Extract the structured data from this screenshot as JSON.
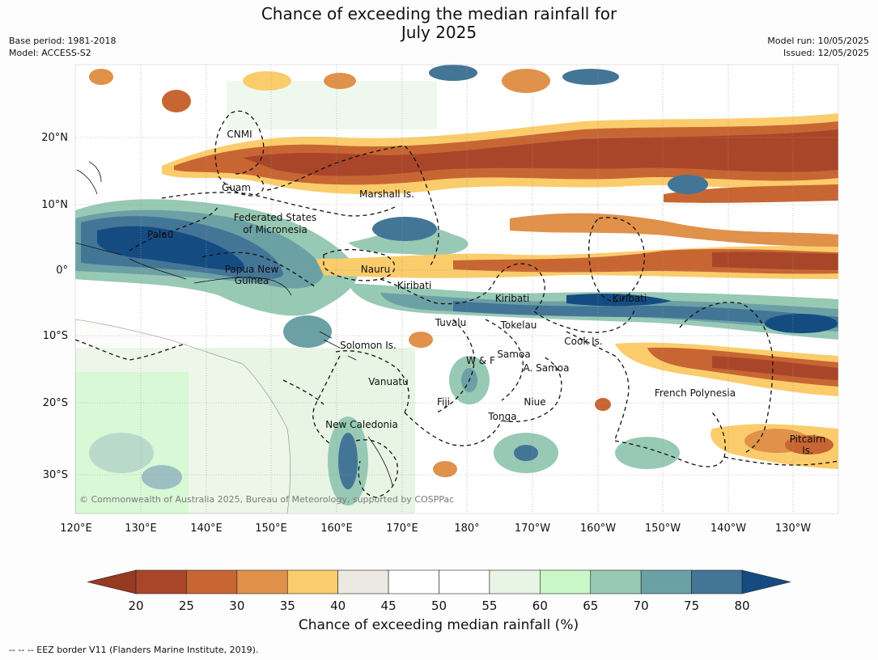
{
  "title_line1": "Chance of exceeding the median rainfall for",
  "title_line2": "July 2025",
  "meta_left": {
    "base_period": "Base period: 1981-2018",
    "model": "Model: ACCESS-S2"
  },
  "meta_right": {
    "model_run": "Model run: 10/05/2025",
    "issued": "Issued: 12/05/2025"
  },
  "axes": {
    "lon_labels": [
      "120°E",
      "130°E",
      "140°E",
      "150°E",
      "160°E",
      "170°E",
      "180°",
      "170°W",
      "160°W",
      "150°W",
      "140°W",
      "130°W"
    ],
    "lat_labels": [
      "20°N",
      "10°N",
      "0°",
      "10°S",
      "20°S",
      "30°S"
    ]
  },
  "region_labels": {
    "cnmi": "CNMI",
    "guam": "Guam",
    "marshall": "Marshall Is.",
    "fsm_line1": "Federated States",
    "fsm_line2": "of Micronesia",
    "palau": "Palau",
    "nauru": "Nauru",
    "png_line1": "Papua New",
    "png_line2": "Guinea",
    "kiribati_west": "Kiribati",
    "kiribati_central": "Kiribati",
    "kiribati_east": "Kiribati",
    "tuvalu": "Tuvalu",
    "tokelau": "Tokelau",
    "cook": "Cook Is.",
    "solomon": "Solomon Is.",
    "samoa": "Samoa",
    "wf": "W & F",
    "asamoa": "A. Samoa",
    "vanuatu": "Vanuatu",
    "fiji": "Fiji",
    "niue": "Niue",
    "tonga": "Tonga",
    "frpoly": "French Polynesia",
    "newcal": "New Caledonia",
    "pitcairn_line1": "Pitcairn",
    "pitcairn_line2": "Is."
  },
  "copyright": "© Commonwealth of Australia 2025, Bureau of Meteorology, supported by COSPPac",
  "colorbar": {
    "ticks": [
      "20",
      "25",
      "30",
      "35",
      "40",
      "45",
      "50",
      "55",
      "60",
      "65",
      "70",
      "75",
      "80"
    ],
    "colors": [
      "#a9462a",
      "#c86633",
      "#e0914a",
      "#fbcc6b",
      "#ece9e3",
      "#ffffff",
      "#ffffff",
      "#e8f5e4",
      "#c9f7c6",
      "#98c9b5",
      "#6ba1a5",
      "#437597"
    ],
    "low_extend_color": "#963a22",
    "high_extend_color": "#144c82",
    "label": "Chance of exceeding median rainfall (%)"
  },
  "footer": "--  --  -- EEZ border V11 (Flanders Marine Institute, 2019)."
}
